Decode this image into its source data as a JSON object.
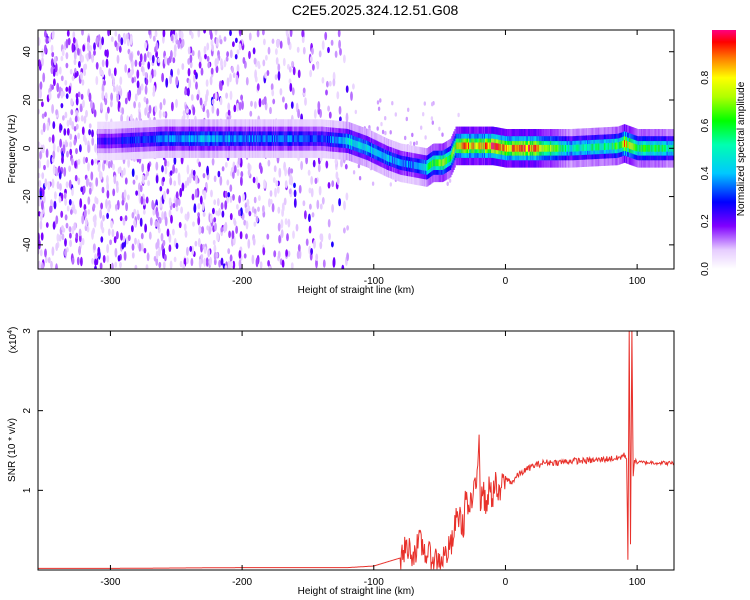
{
  "title": "C2E5.2025.324.12.51.G08",
  "chart_data": [
    {
      "type": "heatmap",
      "xlabel": "Height of straight line (km)",
      "ylabel": "Frequency (Hz)",
      "xlim": [
        -355,
        128
      ],
      "ylim": [
        -50,
        49
      ],
      "xticks": [
        -300,
        -200,
        -100,
        0,
        100
      ],
      "xtick_labels": [
        "-300",
        "-200",
        "-100",
        "0",
        "100"
      ],
      "yticks": [
        -40,
        -20,
        0,
        20,
        40
      ],
      "ytick_labels": [
        "-40",
        "-20",
        "0",
        "20",
        "40"
      ],
      "colorbar": {
        "label": "Normalized spectral amplitude",
        "range": [
          0,
          1
        ],
        "ticks": [
          0.0,
          0.2,
          0.4,
          0.6,
          0.8
        ],
        "tick_labels": [
          "0.0",
          "0.2",
          "0.4",
          "0.6",
          "0.8"
        ]
      },
      "ridge": {
        "x": [
          -300,
          -260,
          -230,
          -200,
          -170,
          -140,
          -120,
          -105,
          -90,
          -80,
          -70,
          -60,
          -55,
          -48,
          -42,
          -38,
          -30,
          -20,
          -10,
          0,
          20,
          50,
          85,
          90,
          100,
          128
        ],
        "frequency": [
          3,
          4,
          4,
          4,
          4,
          4,
          3,
          0,
          -4,
          -6,
          -7,
          -8,
          -6,
          -6,
          -4,
          1,
          1,
          1,
          1,
          0,
          0,
          0,
          1,
          2,
          0,
          0
        ],
        "amplitude": [
          0.25,
          0.35,
          0.4,
          0.35,
          0.35,
          0.3,
          0.45,
          0.45,
          0.4,
          0.35,
          0.35,
          0.5,
          0.65,
          0.7,
          0.6,
          0.75,
          0.85,
          0.8,
          0.9,
          0.9,
          0.9,
          0.5,
          0.6,
          0.85,
          0.6,
          0.55
        ]
      }
    },
    {
      "type": "line",
      "xlabel": "Height of straight line (km)",
      "ylabel": "SNR (10 * v/v)",
      "yscale_label": "(x10",
      "yscale_exponent": "4",
      "yscale_suffix": ")",
      "xlim": [
        -355,
        128
      ],
      "ylim": [
        0,
        3
      ],
      "xticks": [
        -300,
        -200,
        -100,
        0,
        100
      ],
      "xtick_labels": [
        "-300",
        "-200",
        "-100",
        "0",
        "100"
      ],
      "yticks": [
        1,
        2,
        3
      ],
      "ytick_labels": [
        "1",
        "2",
        "3"
      ],
      "color": "#e8312b",
      "x": [
        -355,
        -300,
        -200,
        -120,
        -100,
        -90,
        -80,
        -75,
        -70,
        -65,
        -60,
        -55,
        -50,
        -45,
        -40,
        -38,
        -35,
        -32,
        -30,
        -28,
        -25,
        -22,
        -20,
        -19,
        -18,
        -15,
        -12,
        -10,
        -8,
        -5,
        -2,
        0,
        5,
        10,
        15,
        20,
        30,
        40,
        50,
        60,
        70,
        80,
        85,
        88,
        90,
        92,
        93,
        94,
        95,
        96,
        97,
        98,
        100,
        110,
        128
      ],
      "values": [
        0.02,
        0.02,
        0.03,
        0.03,
        0.05,
        0.1,
        0.15,
        0.3,
        0.2,
        0.35,
        0.2,
        0.15,
        0.12,
        0.2,
        0.35,
        0.6,
        0.7,
        0.5,
        1.0,
        0.7,
        0.9,
        1.05,
        1.8,
        0.8,
        1.1,
        0.8,
        1.05,
        0.9,
        1.1,
        0.9,
        1.1,
        1.15,
        1.1,
        1.2,
        1.25,
        1.3,
        1.35,
        1.35,
        1.37,
        1.37,
        1.38,
        1.4,
        1.4,
        1.42,
        1.45,
        1.4,
        0.15,
        3.0,
        0.3,
        3.0,
        1.2,
        1.38,
        1.35,
        1.35,
        1.34
      ]
    }
  ]
}
